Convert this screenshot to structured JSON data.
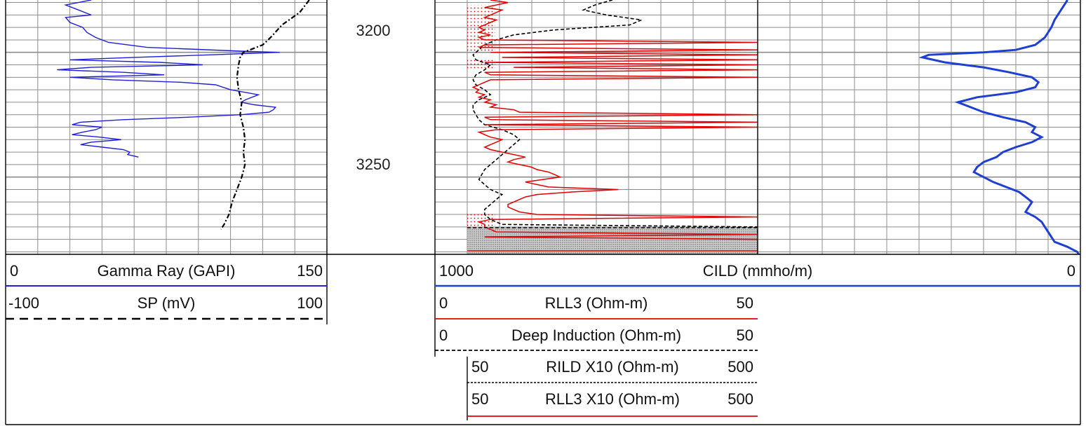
{
  "colors": {
    "gamma_ray": "#1f1fd6",
    "sp": "#000000",
    "cild": "#1f3fd0",
    "rll3": "#e00000",
    "deep_induction": "#000000",
    "grid": "#8c8c8c",
    "border": "#000000"
  },
  "depth_track": {
    "labels": [
      "3200",
      "3250"
    ]
  },
  "headers": {
    "gamma_ray": {
      "min": "0",
      "name": "Gamma Ray (GAPI)",
      "max": "150"
    },
    "sp": {
      "min": "-100",
      "name": "SP (mV)",
      "max": "100"
    },
    "cild": {
      "min": "1000",
      "name": "CILD (mmho/m)",
      "max": "0"
    },
    "rll3": {
      "min": "0",
      "name": "RLL3 (Ohm-m)",
      "max": "50"
    },
    "deep_induction": {
      "min": "0",
      "name": "Deep Induction (Ohm-m)",
      "max": "50"
    },
    "rild_x10": {
      "min": "50",
      "name": "RILD X10 (Ohm-m)",
      "max": "500"
    },
    "rll3_x10": {
      "min": "50",
      "name": "RLL3 X10 (Ohm-m)",
      "max": "500"
    }
  },
  "chart_data": {
    "type": "line",
    "depth_axis": {
      "ylim": [
        3179,
        3281
      ],
      "ticks": [
        3200,
        3250
      ],
      "direction": "increasing-downward"
    },
    "grid": true,
    "series": [
      {
        "name": "Gamma Ray (GAPI)",
        "xlim": [
          0,
          150
        ],
        "depth": [
          3179,
          3181,
          3183,
          3185,
          3186,
          3188,
          3190,
          3192,
          3194,
          3196,
          3198,
          3199.5,
          3200,
          3201,
          3202,
          3203,
          3204,
          3205,
          3206,
          3207,
          3208,
          3209,
          3210,
          3211,
          3212,
          3213,
          3215,
          3217,
          3219,
          3220,
          3221,
          3222,
          3223,
          3224,
          3225,
          3226,
          3227,
          3228,
          3229,
          3230,
          3231,
          3232,
          3233,
          3234,
          3235,
          3236,
          3237,
          3238,
          3239,
          3240,
          3241,
          3242
        ],
        "values": [
          40,
          28,
          34,
          40,
          28,
          30,
          36,
          38,
          42,
          48,
          66,
          110,
          128,
          95,
          60,
          30,
          72,
          92,
          40,
          24,
          55,
          74,
          30,
          50,
          82,
          98,
          105,
          118,
          112,
          110,
          116,
          126,
          125,
          123,
          110,
          85,
          55,
          35,
          31,
          45,
          42,
          36,
          31,
          44,
          54,
          40,
          35,
          45,
          55,
          58,
          57,
          62
        ]
      },
      {
        "name": "SP (mV)",
        "xlim": [
          -100,
          100
        ],
        "depth": [
          3179,
          3184,
          3189,
          3194,
          3197,
          3199,
          3200,
          3202,
          3205,
          3210,
          3215,
          3220,
          3225,
          3230,
          3235,
          3240,
          3245,
          3250,
          3255,
          3260,
          3265,
          3269,
          3271
        ],
        "values": [
          89,
          83,
          72,
          65,
          60,
          52,
          48,
          46,
          45,
          44,
          45,
          47,
          46,
          48,
          49,
          48,
          49,
          47,
          44,
          41,
          39,
          36,
          34
        ]
      },
      {
        "name": "CILD (mmho/m)",
        "xlim": [
          1000,
          0
        ],
        "depth": [
          3179,
          3183,
          3187,
          3190,
          3194,
          3197,
          3199,
          3200,
          3201,
          3202,
          3204,
          3206,
          3208,
          3210,
          3212,
          3214,
          3216,
          3218,
          3220,
          3222,
          3224,
          3226,
          3228,
          3230,
          3232,
          3234,
          3236,
          3238,
          3240,
          3242,
          3244,
          3246,
          3248,
          3250,
          3252,
          3254,
          3256,
          3258,
          3260,
          3262,
          3264,
          3266,
          3268,
          3270,
          3272,
          3274,
          3276,
          3278,
          3280,
          3281
        ],
        "values": [
          40,
          60,
          80,
          90,
          110,
          140,
          200,
          300,
          470,
          490,
          420,
          300,
          220,
          150,
          130,
          140,
          200,
          320,
          380,
          340,
          300,
          240,
          170,
          140,
          150,
          120,
          150,
          200,
          240,
          260,
          300,
          320,
          330,
          300,
          270,
          230,
          190,
          170,
          150,
          160,
          170,
          140,
          120,
          110,
          100,
          90,
          80,
          40,
          10,
          5
        ]
      },
      {
        "name": "Deep Induction (Ohm-m)",
        "xlim": [
          0,
          50
        ],
        "depth": [
          3179,
          3181,
          3183,
          3185,
          3187,
          3189,
          3191,
          3193,
          3195,
          3197,
          3199,
          3201,
          3203,
          3205,
          3207,
          3209,
          3211,
          3213,
          3215,
          3217,
          3219,
          3221,
          3223,
          3225,
          3227,
          3229,
          3231,
          3233,
          3235,
          3237,
          3239,
          3241,
          3243,
          3245,
          3247,
          3249,
          3251,
          3253,
          3255,
          3257,
          3259,
          3261,
          3263,
          3265,
          3267,
          3269,
          3270,
          3271,
          3272,
          3273
        ],
        "values": [
          25,
          22,
          20,
          24,
          30,
          28,
          15,
          8,
          5,
          3,
          2,
          1,
          1.5,
          4,
          3,
          1.5,
          1,
          1.5,
          3,
          4,
          2,
          1,
          1,
          1.5,
          2,
          3,
          6,
          8,
          9,
          8,
          7,
          6,
          5,
          4,
          3,
          2.5,
          2,
          3,
          4,
          6,
          5,
          4,
          3,
          3,
          4,
          6,
          50,
          50,
          50,
          50
        ]
      },
      {
        "name": "RLL3 (Ohm-m)",
        "xlim": [
          0,
          50
        ],
        "depth": [
          3179,
          3180,
          3181,
          3182,
          3183,
          3184,
          3185,
          3186,
          3187,
          3188,
          3189,
          3190,
          3191,
          3192,
          3193,
          3194,
          3195,
          3196,
          3197,
          3198,
          3199,
          3200,
          3201,
          3202,
          3203,
          3204,
          3205,
          3206,
          3207,
          3208,
          3209,
          3210,
          3211,
          3212,
          3213,
          3214,
          3215,
          3216,
          3217,
          3218,
          3219,
          3220,
          3221,
          3222,
          3223,
          3224,
          3225,
          3226,
          3227,
          3228,
          3229,
          3230,
          3231,
          3232,
          3233,
          3234,
          3235,
          3236,
          3237,
          3238,
          3239,
          3240,
          3241,
          3242,
          3243,
          3244,
          3245,
          3246,
          3247,
          3248,
          3249,
          3250,
          3251,
          3252,
          3253,
          3254,
          3255,
          3256,
          3257,
          3258,
          3259,
          3260,
          3261,
          3262,
          3263,
          3264,
          3265,
          3266,
          3267,
          3268,
          3269,
          3270,
          3271,
          3272,
          3273,
          3274,
          3275,
          3276,
          3277,
          3278,
          3279,
          3280,
          3281
        ],
        "values": [
          4,
          7,
          5,
          3,
          6,
          5,
          4,
          3,
          5,
          4,
          3,
          2,
          3,
          2,
          4,
          2,
          3,
          50,
          3,
          2,
          50,
          4,
          50,
          6,
          50,
          3,
          50,
          8,
          50,
          3,
          4,
          50,
          4,
          3,
          2,
          1,
          2,
          1.5,
          3,
          2,
          4,
          3,
          5,
          4,
          8,
          9,
          50,
          3,
          4,
          50,
          3,
          50,
          5,
          2,
          3,
          4,
          6,
          5,
          4,
          3,
          4,
          6,
          8,
          10,
          8,
          7,
          9,
          11,
          12,
          14,
          15,
          16,
          13,
          10,
          12,
          14,
          26,
          18,
          12,
          10,
          9,
          8,
          7,
          7,
          8,
          9,
          12,
          50,
          4,
          2,
          3,
          3,
          4,
          5,
          50,
          3,
          50,
          50,
          50,
          50,
          50,
          50,
          50
        ]
      }
    ],
    "facies_fill": {
      "sandstone_dots": [
        [
          3181,
          3200
        ],
        [
          3203,
          3207
        ],
        [
          3264,
          3270
        ]
      ],
      "shale_gray": [
        [
          3270,
          3281
        ]
      ]
    }
  }
}
